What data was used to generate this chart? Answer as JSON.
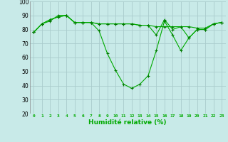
{
  "xlabel": "Humidité relative (%)",
  "bg_color": "#c8eae8",
  "grid_color": "#aacccc",
  "line_color": "#00aa00",
  "marker_color": "#007700",
  "ylim": [
    20,
    100
  ],
  "yticks": [
    20,
    30,
    40,
    50,
    60,
    70,
    80,
    90,
    100
  ],
  "xticks": [
    0,
    1,
    2,
    3,
    4,
    5,
    6,
    7,
    8,
    9,
    10,
    11,
    12,
    13,
    14,
    15,
    16,
    17,
    18,
    19,
    20,
    21,
    22,
    23
  ],
  "line1": [
    78,
    84,
    86,
    90,
    90,
    85,
    85,
    85,
    79,
    63,
    51,
    41,
    38,
    41,
    47,
    65,
    86,
    76,
    65,
    74,
    80,
    80,
    84,
    85
  ],
  "line2": [
    78,
    84,
    87,
    89,
    90,
    85,
    85,
    85,
    84,
    84,
    84,
    84,
    84,
    83,
    83,
    82,
    82,
    82,
    82,
    82,
    81,
    81,
    84,
    85
  ],
  "line3": [
    78,
    84,
    87,
    89,
    90,
    85,
    85,
    85,
    84,
    84,
    84,
    84,
    84,
    83,
    83,
    76,
    87,
    80,
    82,
    74,
    80,
    80,
    84,
    85
  ]
}
